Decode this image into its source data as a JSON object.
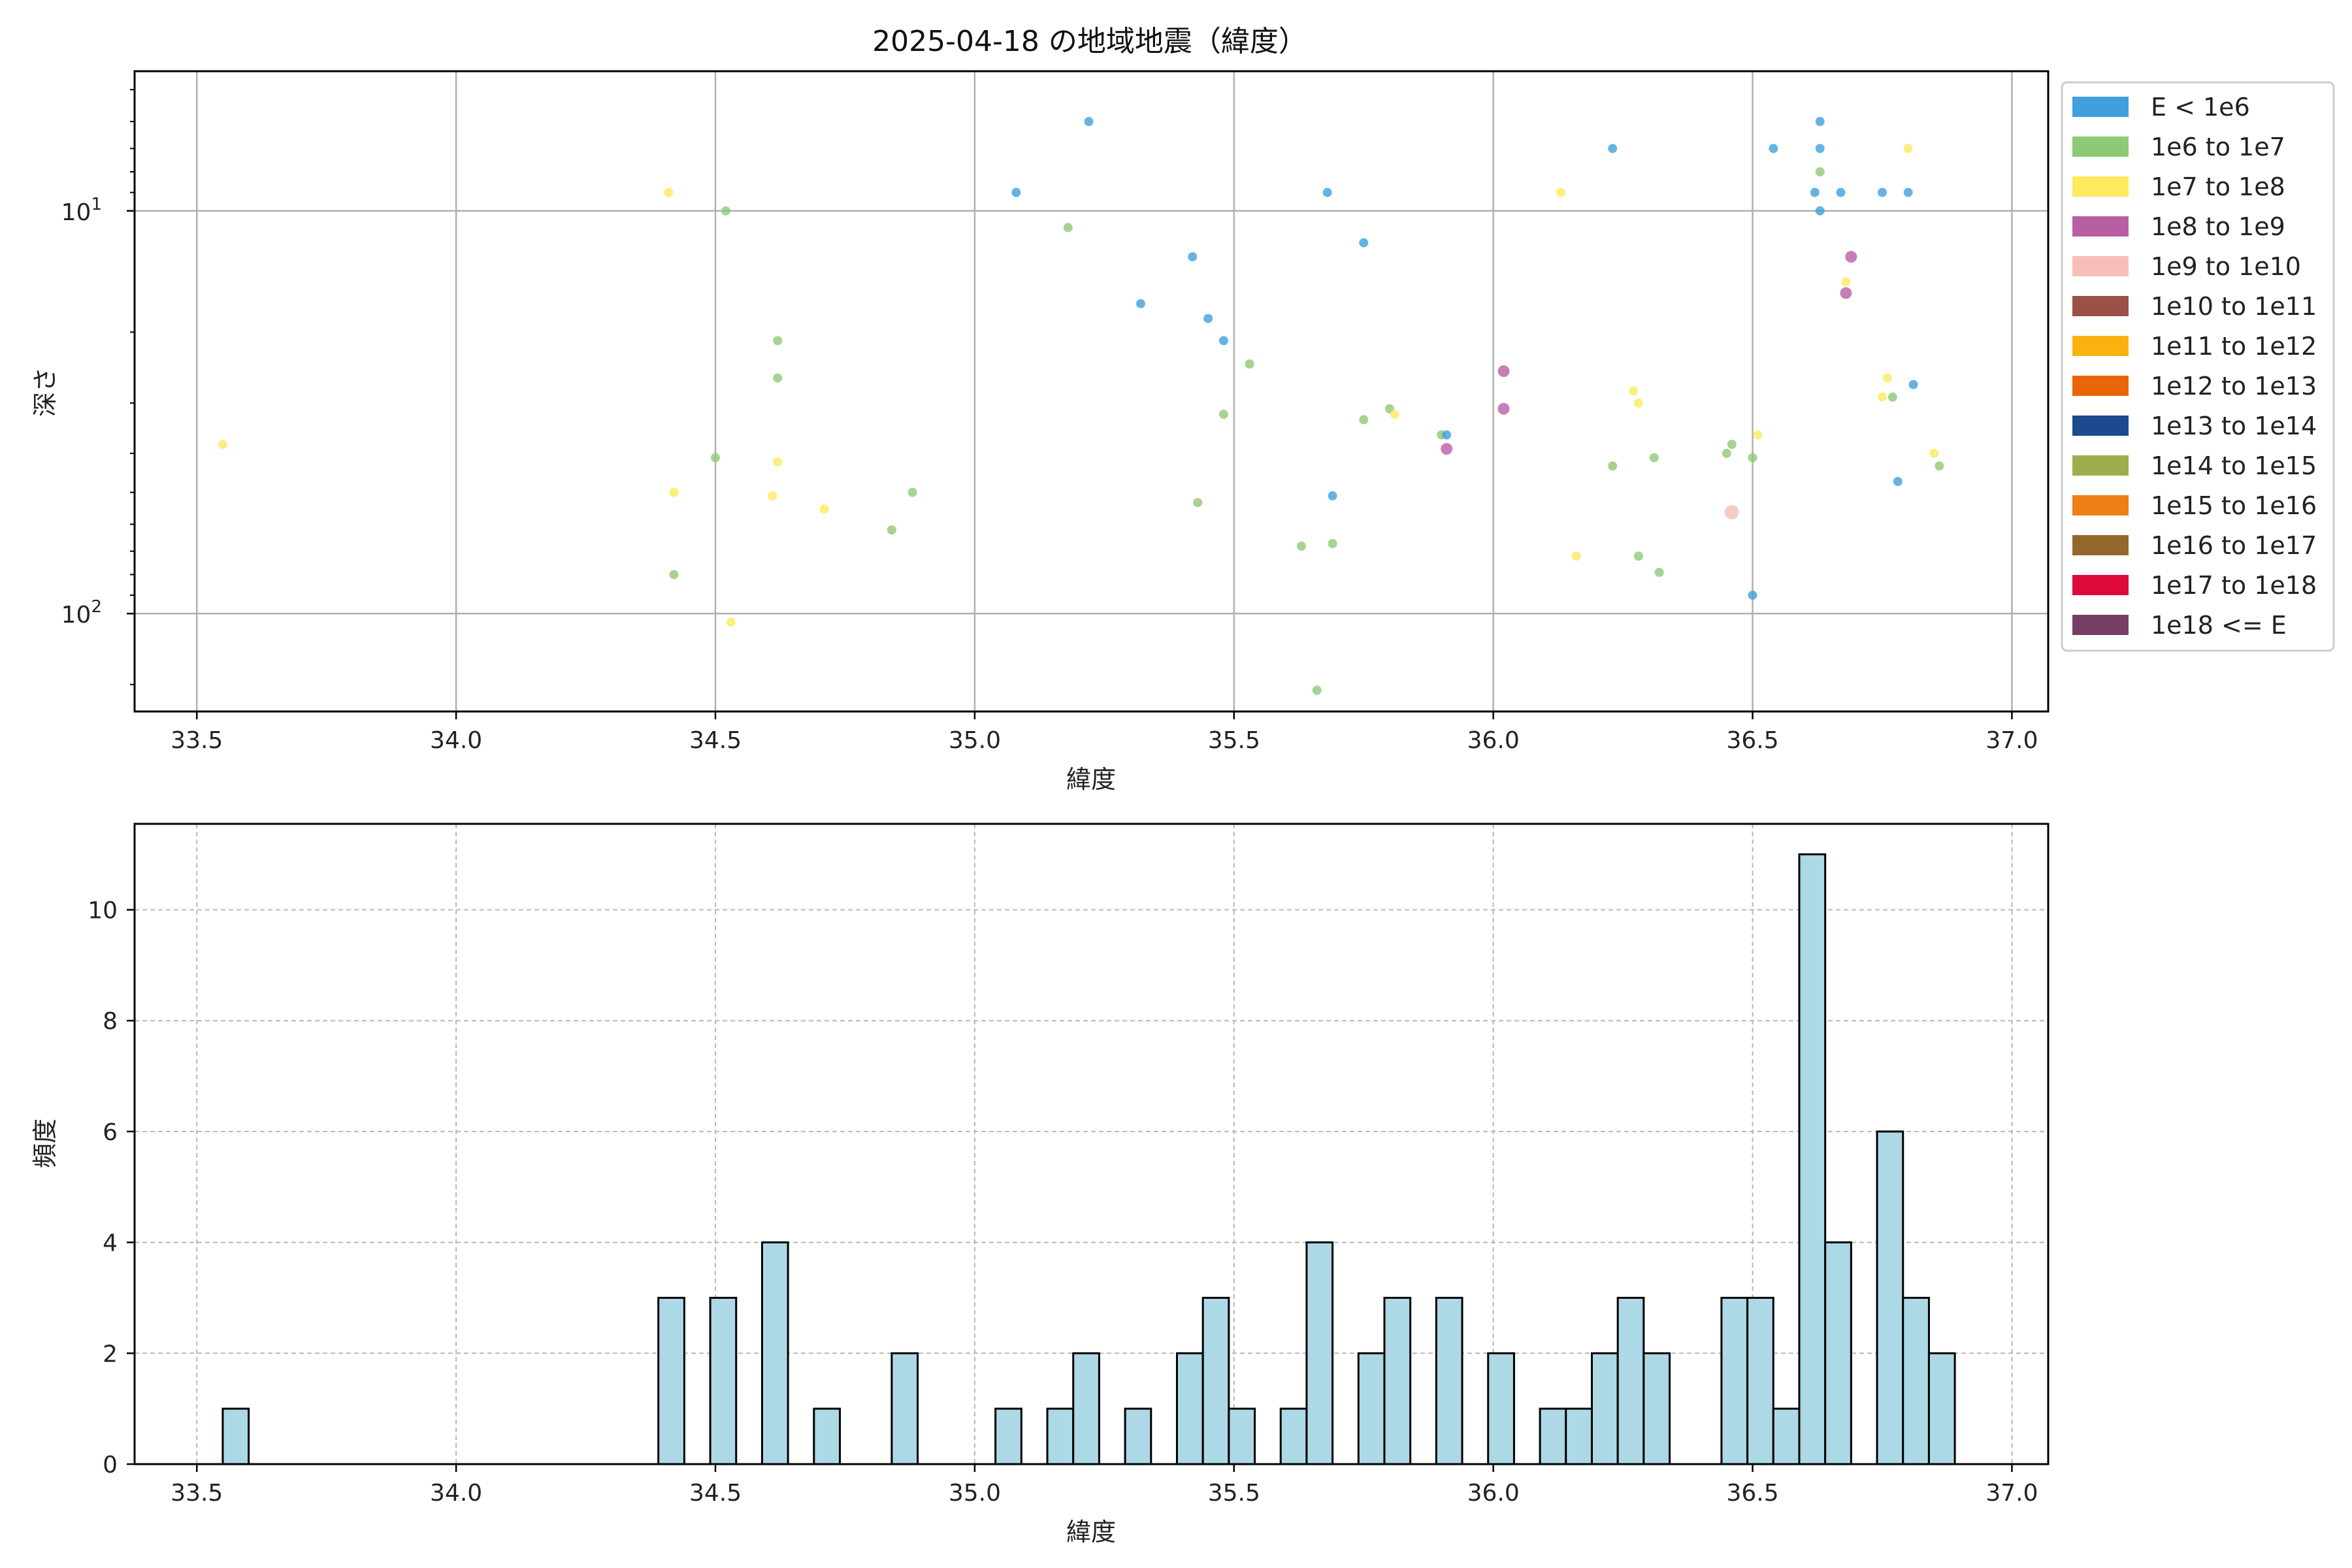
{
  "chart_data": [
    {
      "type": "scatter",
      "title": "2025-04-18 の地域地震（緯度）",
      "xlabel": "緯度",
      "ylabel": "深さ",
      "x_ticks": [
        "33.5",
        "34.0",
        "34.5",
        "35.0",
        "35.5",
        "36.0",
        "36.5",
        "37.0"
      ],
      "xlim": [
        33.38,
        37.07
      ],
      "y_scale": "log",
      "y_inverted": true,
      "ylim": [
        175,
        4.5
      ],
      "y_ticks": [
        {
          "value": 10,
          "base": "10",
          "exp": "1"
        },
        {
          "value": 100,
          "base": "10",
          "exp": "2"
        }
      ],
      "grid": true,
      "legend": {
        "placement": "outside-right",
        "entries": [
          {
            "label": "E < 1e6",
            "color": "#3fa0dd"
          },
          {
            "label": "1e6 to 1e7",
            "color": "#8ec975"
          },
          {
            "label": "1e7 to 1e8",
            "color": "#fdea5e"
          },
          {
            "label": "1e8 to 1e9",
            "color": "#b95ea2"
          },
          {
            "label": "1e9 to 1e10",
            "color": "#f6bfb8"
          },
          {
            "label": "1e10 to 1e11",
            "color": "#9a5148"
          },
          {
            "label": "1e11 to 1e12",
            "color": "#f9b20f"
          },
          {
            "label": "1e12 to 1e13",
            "color": "#ea6509"
          },
          {
            "label": "1e13 to 1e14",
            "color": "#1b4b8e"
          },
          {
            "label": "1e14 to 1e15",
            "color": "#9caf4c"
          },
          {
            "label": "1e15 to 1e16",
            "color": "#ee7e16"
          },
          {
            "label": "1e16 to 1e17",
            "color": "#93682b"
          },
          {
            "label": "1e17 to 1e18",
            "color": "#dd0a38"
          },
          {
            "label": "1e18 <= E",
            "color": "#773e65"
          }
        ]
      },
      "points": [
        {
          "x": 33.55,
          "y": 38,
          "class": 2
        },
        {
          "x": 34.41,
          "y": 9,
          "class": 2
        },
        {
          "x": 34.42,
          "y": 50,
          "class": 2
        },
        {
          "x": 34.42,
          "y": 80,
          "class": 1
        },
        {
          "x": 34.5,
          "y": 41,
          "class": 1
        },
        {
          "x": 34.52,
          "y": 10,
          "class": 1
        },
        {
          "x": 34.53,
          "y": 105,
          "class": 2
        },
        {
          "x": 34.61,
          "y": 51,
          "class": 2
        },
        {
          "x": 34.62,
          "y": 26,
          "class": 1
        },
        {
          "x": 34.62,
          "y": 21,
          "class": 1
        },
        {
          "x": 34.62,
          "y": 42,
          "class": 2
        },
        {
          "x": 34.71,
          "y": 55,
          "class": 2
        },
        {
          "x": 34.84,
          "y": 62,
          "class": 1
        },
        {
          "x": 34.88,
          "y": 50,
          "class": 1
        },
        {
          "x": 35.08,
          "y": 9,
          "class": 0
        },
        {
          "x": 35.18,
          "y": 11,
          "class": 1
        },
        {
          "x": 35.22,
          "y": 6,
          "class": 0
        },
        {
          "x": 35.32,
          "y": 17,
          "class": 0
        },
        {
          "x": 35.42,
          "y": 13,
          "class": 0
        },
        {
          "x": 35.43,
          "y": 53,
          "class": 1
        },
        {
          "x": 35.45,
          "y": 18.5,
          "class": 0
        },
        {
          "x": 35.48,
          "y": 21,
          "class": 0
        },
        {
          "x": 35.48,
          "y": 32,
          "class": 1
        },
        {
          "x": 35.53,
          "y": 24,
          "class": 1
        },
        {
          "x": 35.63,
          "y": 68,
          "class": 1
        },
        {
          "x": 35.66,
          "y": 155,
          "class": 1
        },
        {
          "x": 35.68,
          "y": 9,
          "class": 0
        },
        {
          "x": 35.69,
          "y": 51,
          "class": 0
        },
        {
          "x": 35.69,
          "y": 67,
          "class": 1
        },
        {
          "x": 35.75,
          "y": 12,
          "class": 0
        },
        {
          "x": 35.75,
          "y": 33,
          "class": 1
        },
        {
          "x": 35.8,
          "y": 31,
          "class": 1
        },
        {
          "x": 35.81,
          "y": 32,
          "class": 2
        },
        {
          "x": 35.9,
          "y": 36,
          "class": 1
        },
        {
          "x": 35.91,
          "y": 36,
          "class": 0
        },
        {
          "x": 35.91,
          "y": 39,
          "class": 3
        },
        {
          "x": 36.02,
          "y": 25,
          "class": 3
        },
        {
          "x": 36.02,
          "y": 31,
          "class": 3
        },
        {
          "x": 36.13,
          "y": 9,
          "class": 2
        },
        {
          "x": 36.16,
          "y": 72,
          "class": 2
        },
        {
          "x": 36.23,
          "y": 7,
          "class": 0
        },
        {
          "x": 36.23,
          "y": 43,
          "class": 1
        },
        {
          "x": 36.27,
          "y": 28,
          "class": 2
        },
        {
          "x": 36.28,
          "y": 30,
          "class": 2
        },
        {
          "x": 36.28,
          "y": 72,
          "class": 1
        },
        {
          "x": 36.31,
          "y": 41,
          "class": 1
        },
        {
          "x": 36.32,
          "y": 79,
          "class": 1
        },
        {
          "x": 36.45,
          "y": 40,
          "class": 1
        },
        {
          "x": 36.46,
          "y": 38,
          "class": 1
        },
        {
          "x": 36.46,
          "y": 56,
          "class": 4
        },
        {
          "x": 36.5,
          "y": 41,
          "class": 1
        },
        {
          "x": 36.5,
          "y": 90,
          "class": 0
        },
        {
          "x": 36.51,
          "y": 36,
          "class": 2
        },
        {
          "x": 36.54,
          "y": 7,
          "class": 0
        },
        {
          "x": 36.62,
          "y": 9,
          "class": 0
        },
        {
          "x": 36.63,
          "y": 10,
          "class": 0
        },
        {
          "x": 36.63,
          "y": 8,
          "class": 1
        },
        {
          "x": 36.63,
          "y": 6,
          "class": 0
        },
        {
          "x": 36.63,
          "y": 7,
          "class": 0
        },
        {
          "x": 36.67,
          "y": 9,
          "class": 0
        },
        {
          "x": 36.68,
          "y": 15,
          "class": 2
        },
        {
          "x": 36.68,
          "y": 16,
          "class": 3
        },
        {
          "x": 36.69,
          "y": 13,
          "class": 3
        },
        {
          "x": 36.75,
          "y": 9,
          "class": 0
        },
        {
          "x": 36.75,
          "y": 29,
          "class": 2
        },
        {
          "x": 36.76,
          "y": 26,
          "class": 2
        },
        {
          "x": 36.77,
          "y": 29,
          "class": 1
        },
        {
          "x": 36.78,
          "y": 47,
          "class": 0
        },
        {
          "x": 36.8,
          "y": 7,
          "class": 2
        },
        {
          "x": 36.8,
          "y": 9,
          "class": 0
        },
        {
          "x": 36.81,
          "y": 27,
          "class": 0
        },
        {
          "x": 36.85,
          "y": 40,
          "class": 2
        },
        {
          "x": 36.86,
          "y": 43,
          "class": 1
        }
      ]
    },
    {
      "type": "bar",
      "xlabel": "緯度",
      "ylabel": "頻度",
      "x_ticks": [
        "33.5",
        "34.0",
        "34.5",
        "35.0",
        "35.5",
        "36.0",
        "36.5",
        "37.0"
      ],
      "xlim": [
        33.38,
        37.07
      ],
      "ylim": [
        0,
        11.55
      ],
      "y_ticks": [
        "0",
        "2",
        "4",
        "6",
        "8",
        "10"
      ],
      "grid": true,
      "bar_color": "#add8e6",
      "bin_width": 0.05,
      "bins": [
        {
          "x0": 33.55,
          "count": 1
        },
        {
          "x0": 34.39,
          "count": 3
        },
        {
          "x0": 34.49,
          "count": 3
        },
        {
          "x0": 34.59,
          "count": 4
        },
        {
          "x0": 34.69,
          "count": 1
        },
        {
          "x0": 34.84,
          "count": 2
        },
        {
          "x0": 35.04,
          "count": 1
        },
        {
          "x0": 35.14,
          "count": 1
        },
        {
          "x0": 35.19,
          "count": 2
        },
        {
          "x0": 35.29,
          "count": 1
        },
        {
          "x0": 35.39,
          "count": 2
        },
        {
          "x0": 35.44,
          "count": 3
        },
        {
          "x0": 35.49,
          "count": 1
        },
        {
          "x0": 35.59,
          "count": 1
        },
        {
          "x0": 35.64,
          "count": 4
        },
        {
          "x0": 35.74,
          "count": 2
        },
        {
          "x0": 35.79,
          "count": 3
        },
        {
          "x0": 35.89,
          "count": 3
        },
        {
          "x0": 35.99,
          "count": 2
        },
        {
          "x0": 36.09,
          "count": 1
        },
        {
          "x0": 36.14,
          "count": 1
        },
        {
          "x0": 36.19,
          "count": 2
        },
        {
          "x0": 36.24,
          "count": 3
        },
        {
          "x0": 36.29,
          "count": 2
        },
        {
          "x0": 36.44,
          "count": 3
        },
        {
          "x0": 36.49,
          "count": 3
        },
        {
          "x0": 36.54,
          "count": 1
        },
        {
          "x0": 36.59,
          "count": 11
        },
        {
          "x0": 36.64,
          "count": 4
        },
        {
          "x0": 36.74,
          "count": 6
        },
        {
          "x0": 36.79,
          "count": 3
        },
        {
          "x0": 36.84,
          "count": 2
        }
      ]
    }
  ]
}
